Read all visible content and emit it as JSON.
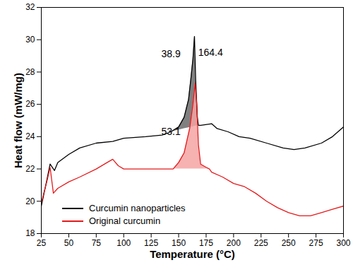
{
  "chart_data": {
    "type": "line",
    "x_label": "Temperature (°C)",
    "y_label": "Heat flow (mW/mg)",
    "xlim": [
      25,
      300
    ],
    "xticks": [
      25,
      50,
      75,
      100,
      125,
      150,
      175,
      200,
      225,
      250,
      275,
      300
    ],
    "ylim": [
      18,
      32
    ],
    "yticks": [
      18,
      20,
      22,
      24,
      26,
      28,
      30,
      32
    ],
    "legend": "lower left",
    "series": [
      {
        "name": "Curcumin nanoparticles",
        "color": "#000000",
        "x": [
          25,
          30,
          33,
          37,
          40,
          50,
          60,
          75,
          90,
          100,
          120,
          135,
          143,
          150,
          155,
          159,
          161,
          163,
          164.4,
          165.5,
          167,
          168,
          170,
          180,
          185,
          195,
          205,
          215,
          230,
          245,
          255,
          265,
          280,
          290,
          300
        ],
        "values": [
          19.7,
          21.3,
          22.3,
          21.9,
          22.4,
          22.9,
          23.3,
          23.6,
          23.7,
          23.9,
          24.0,
          24.1,
          24.3,
          24.6,
          25.2,
          26.3,
          27.5,
          28.8,
          30.2,
          27.5,
          25.2,
          24.7,
          24.7,
          24.8,
          24.5,
          24.3,
          24.0,
          23.9,
          23.6,
          23.3,
          23.2,
          23.3,
          23.6,
          24.0,
          24.6
        ],
        "peak_range": [
          143,
          168
        ]
      },
      {
        "name": "Original curcumin",
        "color": "#e41a1c",
        "x": [
          25,
          30,
          33,
          36,
          40,
          50,
          60,
          75,
          85,
          90,
          95,
          100,
          120,
          140,
          145,
          150,
          155,
          160,
          163,
          165,
          166.5,
          168,
          170,
          175,
          178,
          180,
          190,
          200,
          210,
          220,
          230,
          240,
          250,
          260,
          270,
          280,
          290,
          300
        ],
        "values": [
          19.9,
          21.2,
          22.1,
          20.5,
          20.8,
          21.2,
          21.5,
          22.0,
          22.4,
          22.6,
          22.2,
          22.0,
          22.0,
          22.0,
          22.0,
          22.4,
          23.0,
          24.5,
          26.0,
          27.3,
          26.0,
          23.5,
          22.3,
          22.1,
          22.0,
          21.8,
          21.5,
          21.1,
          20.9,
          20.5,
          20.0,
          19.6,
          19.3,
          19.1,
          19.1,
          19.3,
          19.5,
          19.7
        ],
        "peak_range": [
          145,
          178
        ]
      }
    ],
    "annotations": [
      {
        "text": "38.9",
        "x": 143,
        "y": 29.1
      },
      {
        "text": "164.4",
        "x": 179,
        "y": 29.2
      },
      {
        "text": "53.1",
        "x": 143,
        "y": 24.3
      }
    ]
  }
}
